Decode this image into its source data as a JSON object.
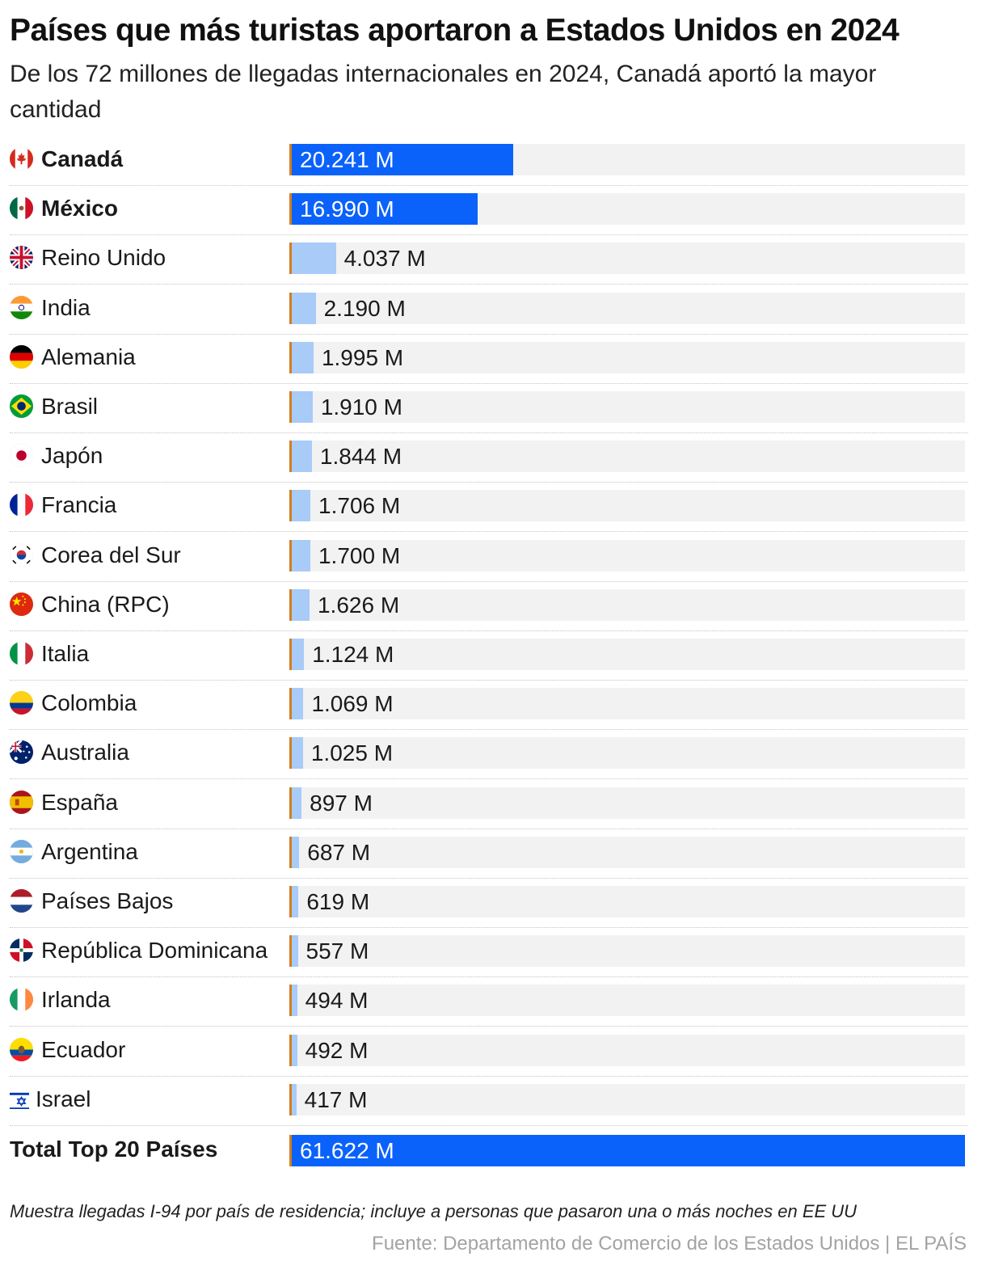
{
  "chart_data": {
    "type": "bar",
    "orientation": "horizontal",
    "title": "Países que más turistas aportaron a Estados Unidos en 2024",
    "subtitle": "De los 72 millones de llegadas internacionales en 2024, Canadá aportó la mayor cantidad",
    "xlim": [
      0,
      61622
    ],
    "unit_suffix": " M",
    "categories": [
      "Canadá",
      "México",
      "Reino Unido",
      "India",
      "Alemania",
      "Brasil",
      "Japón",
      "Francia",
      "Corea del Sur",
      "China (RPC)",
      "Italia",
      "Colombia",
      "Australia",
      "España",
      "Argentina",
      "Países Bajos",
      "República Dominicana",
      "Irlanda",
      "Ecuador",
      "Israel"
    ],
    "values": [
      20241,
      16990,
      4037,
      2190,
      1995,
      1910,
      1844,
      1706,
      1700,
      1626,
      1124,
      1069,
      1025,
      897,
      687,
      619,
      557,
      494,
      492,
      417
    ],
    "value_labels": [
      "20.241 M",
      "16.990 M",
      "4.037 M",
      "2.190 M",
      "1.995 M",
      "1.910 M",
      "1.844 M",
      "1.706 M",
      "1.700 M",
      "1.626 M",
      "1.124 M",
      "1.069 M",
      "1.025 M",
      "897 M",
      "687 M",
      "619 M",
      "557 M",
      "494 M",
      "492 M",
      "417 M"
    ],
    "highlighted": [
      "Canadá",
      "México"
    ],
    "flags": [
      "canada-flag-icon",
      "mexico-flag-icon",
      "uk-flag-icon",
      "india-flag-icon",
      "germany-flag-icon",
      "brazil-flag-icon",
      "japan-flag-icon",
      "france-flag-icon",
      "south-korea-flag-icon",
      "china-flag-icon",
      "italy-flag-icon",
      "colombia-flag-icon",
      "australia-flag-icon",
      "spain-flag-icon",
      "argentina-flag-icon",
      "netherlands-flag-icon",
      "dominican-republic-flag-icon",
      "ireland-flag-icon",
      "ecuador-flag-icon",
      "israel-flag-icon"
    ],
    "total": {
      "label": "Total Top 20 Países",
      "value": 61622,
      "value_label": "61.622 M"
    },
    "colors": {
      "highlight": "#0a62fb",
      "regular": "#a8cbf7",
      "track": "#f2f2f2",
      "axis": "#d37f20"
    }
  },
  "footer": {
    "note": "Muestra llegadas I-94 por país de residencia; incluye a personas que pasaron una o más noches en EE UU",
    "source": "Fuente: Departamento de Comercio de los Estados Unidos | EL PAÍS"
  }
}
